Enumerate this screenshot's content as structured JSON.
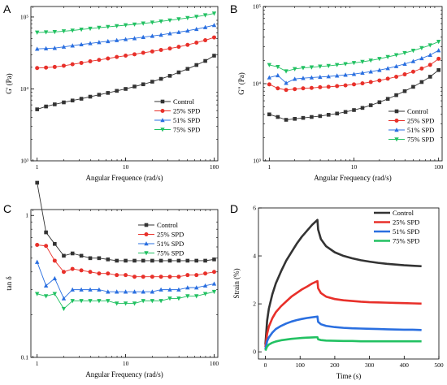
{
  "figure_letters": [
    "A",
    "B",
    "C",
    "D"
  ],
  "colors": {
    "Control": "#333333",
    "25% SPD": "#e8302a",
    "51% SPD": "#2a6fe0",
    "75% SPD": "#22c162"
  },
  "chart_data": [
    {
      "panel": "A",
      "type": "line",
      "xlabel": "Angular Frequence (rad/s)",
      "ylabel": "G' (Pa)",
      "xscale": "log",
      "yscale": "log",
      "xlim": [
        0.85,
        110
      ],
      "ylim": [
        1000,
        140000
      ],
      "xticks": [
        1,
        10,
        100
      ],
      "xticklabels": [
        "1",
        "10",
        "100"
      ],
      "yticks": [
        1000,
        10000,
        100000
      ],
      "yticklabels": [
        "10³",
        "10⁴",
        "10⁵"
      ],
      "legend_position": "lower-right",
      "series": [
        {
          "name": "Control",
          "marker": "square",
          "x": [
            1,
            1.26,
            1.58,
            2,
            2.51,
            3.16,
            3.98,
            5.01,
            6.31,
            7.94,
            10,
            12.6,
            15.8,
            20,
            25.1,
            31.6,
            39.8,
            50.1,
            63.1,
            79.4,
            100
          ],
          "y": [
            5200,
            5700,
            6100,
            6500,
            6900,
            7300,
            7800,
            8300,
            8800,
            9400,
            10000,
            10800,
            11600,
            12600,
            13800,
            15200,
            17000,
            19000,
            21500,
            24500,
            29000
          ]
        },
        {
          "name": "25% SPD",
          "marker": "circle",
          "x": [
            1,
            1.26,
            1.58,
            2,
            2.51,
            3.16,
            3.98,
            5.01,
            6.31,
            7.94,
            10,
            12.6,
            15.8,
            20,
            25.1,
            31.6,
            39.8,
            50.1,
            63.1,
            79.4,
            100
          ],
          "y": [
            19500,
            19800,
            20200,
            21000,
            22000,
            23000,
            24200,
            25300,
            26500,
            27800,
            29000,
            30300,
            31800,
            33200,
            34800,
            36500,
            38500,
            41000,
            44000,
            47500,
            52000
          ]
        },
        {
          "name": "51% SPD",
          "marker": "triangle-up",
          "x": [
            1,
            1.26,
            1.58,
            2,
            2.51,
            3.16,
            3.98,
            5.01,
            6.31,
            7.94,
            10,
            12.6,
            15.8,
            20,
            25.1,
            31.6,
            39.8,
            50.1,
            63.1,
            79.4,
            100
          ],
          "y": [
            36000,
            36500,
            37000,
            38500,
            40000,
            41500,
            43000,
            44500,
            46000,
            47500,
            49000,
            50500,
            52500,
            54500,
            56500,
            59000,
            61500,
            64500,
            68000,
            72000,
            77000
          ]
        },
        {
          "name": "75% SPD",
          "marker": "triangle-down",
          "x": [
            1,
            1.26,
            1.58,
            2,
            2.51,
            3.16,
            3.98,
            5.01,
            6.31,
            7.94,
            10,
            12.6,
            15.8,
            20,
            25.1,
            31.6,
            39.8,
            50.1,
            63.1,
            79.4,
            100
          ],
          "y": [
            61000,
            61500,
            62000,
            63500,
            65000,
            67000,
            69000,
            71000,
            73000,
            75000,
            77000,
            79000,
            81500,
            84000,
            87000,
            90000,
            93500,
            97000,
            101000,
            106000,
            112000
          ]
        }
      ]
    },
    {
      "panel": "B",
      "type": "line",
      "xlabel": "Angular Frequency (rad/s)",
      "ylabel": "G\" (Pa)",
      "xscale": "log",
      "yscale": "log",
      "xlim": [
        0.85,
        110
      ],
      "ylim": [
        1000,
        100000
      ],
      "xticks": [
        1,
        10,
        100
      ],
      "xticklabels": [
        "1",
        "10",
        "100"
      ],
      "yticks": [
        1000,
        10000,
        100000
      ],
      "yticklabels": [
        "10³",
        "10⁴",
        "10⁵"
      ],
      "legend_position": "lower-right",
      "series": [
        {
          "name": "Control",
          "marker": "square",
          "x": [
            1,
            1.26,
            1.58,
            2,
            2.51,
            3.16,
            3.98,
            5.01,
            6.31,
            7.94,
            10,
            12.6,
            15.8,
            20,
            25.1,
            31.6,
            39.8,
            50.1,
            63.1,
            79.4,
            100
          ],
          "y": [
            4000,
            3700,
            3400,
            3500,
            3600,
            3700,
            3800,
            3950,
            4100,
            4300,
            4550,
            4850,
            5250,
            5750,
            6350,
            7100,
            8000,
            9100,
            10500,
            12300,
            15000
          ]
        },
        {
          "name": "25% SPD",
          "marker": "circle",
          "x": [
            1,
            1.26,
            1.58,
            2,
            2.51,
            3.16,
            3.98,
            5.01,
            6.31,
            7.94,
            10,
            12.6,
            15.8,
            20,
            25.1,
            31.6,
            39.8,
            50.1,
            63.1,
            79.4,
            100
          ],
          "y": [
            9800,
            8700,
            8300,
            8500,
            8700,
            8800,
            9000,
            9100,
            9300,
            9500,
            9800,
            10100,
            10500,
            11000,
            11600,
            12300,
            13200,
            14300,
            15700,
            17500,
            21000
          ]
        },
        {
          "name": "51% SPD",
          "marker": "triangle-up",
          "x": [
            1,
            1.26,
            1.58,
            2,
            2.51,
            3.16,
            3.98,
            5.01,
            6.31,
            7.94,
            10,
            12.6,
            15.8,
            20,
            25.1,
            31.6,
            39.8,
            50.1,
            63.1,
            79.4,
            100
          ],
          "y": [
            12000,
            12800,
            10200,
            11500,
            11800,
            12000,
            12200,
            12400,
            12700,
            13000,
            13300,
            13800,
            14300,
            15000,
            15800,
            16800,
            18000,
            19500,
            21300,
            23500,
            27000
          ]
        },
        {
          "name": "75% SPD",
          "marker": "triangle-down",
          "x": [
            1,
            1.26,
            1.58,
            2,
            2.51,
            3.16,
            3.98,
            5.01,
            6.31,
            7.94,
            10,
            12.6,
            15.8,
            20,
            25.1,
            31.6,
            39.8,
            50.1,
            63.1,
            79.4,
            100
          ],
          "y": [
            17500,
            16500,
            14500,
            15500,
            16000,
            16300,
            16700,
            17000,
            17500,
            18000,
            18600,
            19200,
            20000,
            21000,
            22200,
            23500,
            25000,
            26800,
            29000,
            31500,
            35000
          ]
        }
      ]
    },
    {
      "panel": "C",
      "type": "line",
      "xlabel": "Angular Frequency (rad/s)",
      "ylabel": "tan δ",
      "xscale": "log",
      "yscale": "log",
      "xlim": [
        0.85,
        110
      ],
      "ylim": [
        0.1,
        1.1
      ],
      "xticks": [
        1,
        10,
        100
      ],
      "xticklabels": [
        "1",
        "10",
        "100"
      ],
      "yticks": [
        0.1,
        1
      ],
      "yticklabels": [
        "0.1",
        "1"
      ],
      "legend_position": "top-right",
      "series": [
        {
          "name": "Control",
          "marker": "square",
          "x": [
            1,
            1.26,
            1.58,
            2,
            2.51,
            3.16,
            3.98,
            5.01,
            6.31,
            7.94,
            10,
            12.6,
            15.8,
            20,
            25.1,
            31.6,
            39.8,
            50.1,
            63.1,
            79.4,
            100
          ],
          "y": [
            1.7,
            0.76,
            0.63,
            0.52,
            0.54,
            0.52,
            0.5,
            0.5,
            0.49,
            0.48,
            0.48,
            0.48,
            0.48,
            0.48,
            0.48,
            0.48,
            0.48,
            0.48,
            0.48,
            0.48,
            0.49
          ]
        },
        {
          "name": "25% SPD",
          "marker": "circle",
          "x": [
            1,
            1.26,
            1.58,
            2,
            2.51,
            3.16,
            3.98,
            5.01,
            6.31,
            7.94,
            10,
            12.6,
            15.8,
            20,
            25.1,
            31.6,
            39.8,
            50.1,
            63.1,
            79.4,
            100
          ],
          "y": [
            0.62,
            0.61,
            0.48,
            0.4,
            0.42,
            0.41,
            0.4,
            0.39,
            0.39,
            0.38,
            0.38,
            0.37,
            0.37,
            0.37,
            0.37,
            0.37,
            0.37,
            0.38,
            0.38,
            0.39,
            0.4
          ]
        },
        {
          "name": "51% SPD",
          "marker": "triangle-up",
          "x": [
            1,
            1.26,
            1.58,
            2,
            2.51,
            3.16,
            3.98,
            5.01,
            6.31,
            7.94,
            10,
            12.6,
            15.8,
            20,
            25.1,
            31.6,
            39.8,
            50.1,
            63.1,
            79.4,
            100
          ],
          "y": [
            0.47,
            0.32,
            0.36,
            0.26,
            0.3,
            0.3,
            0.3,
            0.3,
            0.29,
            0.29,
            0.29,
            0.29,
            0.29,
            0.29,
            0.3,
            0.3,
            0.3,
            0.31,
            0.31,
            0.32,
            0.33
          ]
        },
        {
          "name": "75% SPD",
          "marker": "triangle-down",
          "x": [
            1,
            1.26,
            1.58,
            2,
            2.51,
            3.16,
            3.98,
            5.01,
            6.31,
            7.94,
            10,
            12.6,
            15.8,
            20,
            25.1,
            31.6,
            39.8,
            50.1,
            63.1,
            79.4,
            100
          ],
          "y": [
            0.28,
            0.27,
            0.28,
            0.22,
            0.25,
            0.25,
            0.25,
            0.25,
            0.25,
            0.24,
            0.24,
            0.24,
            0.25,
            0.25,
            0.25,
            0.26,
            0.26,
            0.27,
            0.27,
            0.28,
            0.29
          ]
        }
      ]
    },
    {
      "panel": "D",
      "type": "line",
      "xlabel": "Time (s)",
      "ylabel": "Strain (%)",
      "xscale": "linear",
      "yscale": "linear",
      "xlim": [
        -20,
        500
      ],
      "ylim": [
        -0.3,
        6
      ],
      "xticks": [
        0,
        100,
        200,
        300,
        400,
        500
      ],
      "xticklabels": [
        "0",
        "100",
        "200",
        "300",
        "400",
        "500"
      ],
      "yticks": [
        0,
        2,
        4,
        6
      ],
      "yticklabels": [
        "0",
        "2",
        "4",
        "6"
      ],
      "legend_position": "top-right",
      "series": [
        {
          "name": "Control",
          "x": [
            0,
            5,
            10,
            20,
            30,
            45,
            60,
            75,
            90,
            105,
            120,
            135,
            150,
            152,
            160,
            175,
            200,
            225,
            250,
            275,
            300,
            325,
            350,
            375,
            400,
            425,
            450
          ],
          "y": [
            0.3,
            1.3,
            1.8,
            2.4,
            2.85,
            3.35,
            3.8,
            4.15,
            4.5,
            4.8,
            5.05,
            5.3,
            5.5,
            5.1,
            4.7,
            4.4,
            4.15,
            4.0,
            3.9,
            3.82,
            3.76,
            3.71,
            3.67,
            3.64,
            3.61,
            3.59,
            3.57
          ]
        },
        {
          "name": "25% SPD",
          "x": [
            0,
            5,
            10,
            20,
            30,
            45,
            60,
            75,
            90,
            105,
            120,
            135,
            150,
            152,
            160,
            175,
            200,
            225,
            250,
            275,
            300,
            325,
            350,
            375,
            400,
            425,
            450
          ],
          "y": [
            0.2,
            0.75,
            1.05,
            1.4,
            1.65,
            1.9,
            2.1,
            2.3,
            2.45,
            2.6,
            2.72,
            2.85,
            2.95,
            2.65,
            2.45,
            2.3,
            2.2,
            2.15,
            2.12,
            2.09,
            2.07,
            2.06,
            2.05,
            2.04,
            2.03,
            2.02,
            2.01
          ]
        },
        {
          "name": "51% SPD",
          "x": [
            0,
            5,
            10,
            20,
            30,
            45,
            60,
            75,
            90,
            105,
            120,
            135,
            150,
            152,
            160,
            175,
            200,
            225,
            250,
            275,
            300,
            325,
            350,
            375,
            400,
            425,
            450
          ],
          "y": [
            0.1,
            0.45,
            0.6,
            0.8,
            0.95,
            1.08,
            1.18,
            1.26,
            1.32,
            1.37,
            1.41,
            1.44,
            1.47,
            1.25,
            1.15,
            1.08,
            1.03,
            1.0,
            0.98,
            0.97,
            0.96,
            0.95,
            0.94,
            0.93,
            0.92,
            0.92,
            0.91
          ]
        },
        {
          "name": "75% SPD",
          "x": [
            0,
            5,
            10,
            20,
            30,
            45,
            60,
            75,
            90,
            105,
            120,
            135,
            150,
            152,
            160,
            175,
            200,
            225,
            250,
            275,
            300,
            325,
            350,
            375,
            400,
            425,
            450
          ],
          "y": [
            0.05,
            0.22,
            0.3,
            0.38,
            0.43,
            0.48,
            0.51,
            0.54,
            0.56,
            0.58,
            0.59,
            0.6,
            0.61,
            0.52,
            0.49,
            0.47,
            0.46,
            0.45,
            0.45,
            0.44,
            0.44,
            0.44,
            0.44,
            0.44,
            0.44,
            0.44,
            0.44
          ]
        }
      ]
    }
  ]
}
